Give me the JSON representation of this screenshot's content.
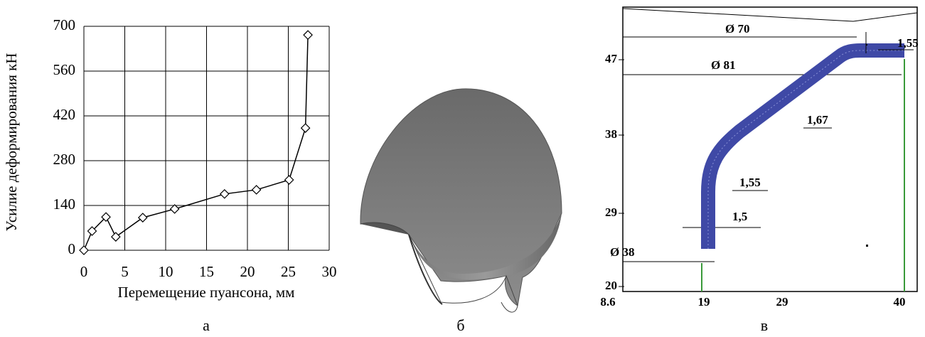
{
  "chart_data": {
    "type": "line",
    "y_label": "Усилие деформирования кН",
    "x_label": "Перемещение пуансона, мм",
    "x": [
      0,
      1,
      2.7,
      3.9,
      7.2,
      11.1,
      17.2,
      21.1,
      25.1,
      27.1,
      27.4
    ],
    "values": [
      0,
      60,
      104,
      42,
      102,
      129,
      176,
      189,
      220,
      382,
      673
    ],
    "color": "#000000",
    "xlim": [
      0,
      30
    ],
    "xticks": [
      0,
      5,
      10,
      15,
      20,
      25,
      30
    ],
    "ylim": [
      0,
      700
    ],
    "yticks": [
      0,
      140,
      280,
      420,
      560,
      700
    ],
    "grid": true
  },
  "captions": [
    "а",
    "б",
    "в"
  ],
  "diagram": {
    "yticks": [
      "47",
      "38",
      "29",
      "20"
    ],
    "xticks": [
      "8.6",
      "19",
      "29",
      "40"
    ],
    "dimensions": [
      "Ø 70",
      "1,55",
      "Ø 81",
      "1,67",
      "1,55",
      "1,5",
      "Ø 38"
    ]
  }
}
